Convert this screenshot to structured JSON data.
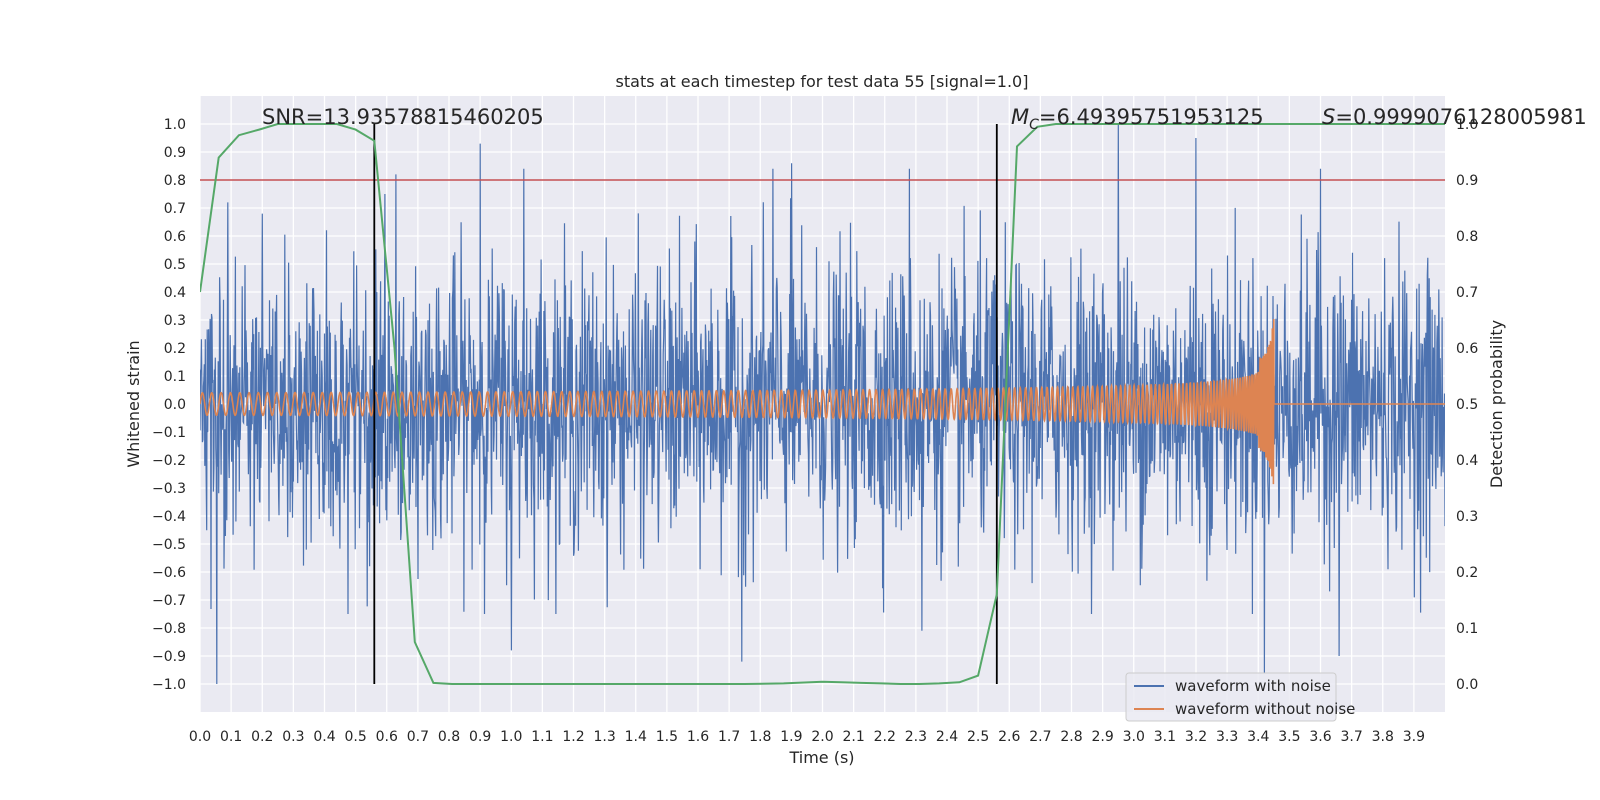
{
  "chart_data": {
    "type": "line",
    "title": "stats at each timestep for test data 55 [signal=1.0]",
    "xlabel": "Time (s)",
    "ylabel_left": "Whitened strain",
    "ylabel_right": "Detection probability",
    "xlim": [
      0.0,
      4.0
    ],
    "ylim_left": [
      -1.1,
      1.1
    ],
    "ylim_right": [
      -0.05,
      1.05
    ],
    "xticks": [
      "0.0",
      "0.1",
      "0.2",
      "0.3",
      "0.4",
      "0.5",
      "0.6",
      "0.7",
      "0.8",
      "0.9",
      "1.0",
      "1.1",
      "1.2",
      "1.3",
      "1.4",
      "1.5",
      "1.6",
      "1.7",
      "1.8",
      "1.9",
      "2.0",
      "2.1",
      "2.2",
      "2.3",
      "2.4",
      "2.5",
      "2.6",
      "2.7",
      "2.8",
      "2.9",
      "3.0",
      "3.1",
      "3.2",
      "3.3",
      "3.4",
      "3.5",
      "3.6",
      "3.7",
      "3.8",
      "3.9"
    ],
    "yticks_left": [
      "1.0",
      "0.9",
      "0.8",
      "0.7",
      "0.6",
      "0.5",
      "0.4",
      "0.3",
      "0.2",
      "0.1",
      "0.0",
      "−0.1",
      "−0.2",
      "−0.3",
      "−0.4",
      "−0.5",
      "−0.6",
      "−0.7",
      "−0.8",
      "−0.9",
      "−1.0"
    ],
    "yticks_right": [
      "1.0",
      "0.9",
      "0.8",
      "0.7",
      "0.6",
      "0.5",
      "0.4",
      "0.3",
      "0.2",
      "0.1",
      "0.0"
    ],
    "threshold": {
      "y_left": 0.8,
      "color": "#c44e52"
    },
    "vlines": [
      {
        "x": 0.56,
        "ymin": -1.0,
        "ymax": 1.0,
        "color": "#000000"
      },
      {
        "x": 2.56,
        "ymin": -1.0,
        "ymax": 1.0,
        "color": "#000000"
      }
    ],
    "series": [
      {
        "name": "waveform with noise",
        "color": "#4c72b0",
        "axis": "left",
        "generator": "noise",
        "amplitude_typical": 0.45,
        "min": -1.0,
        "max": 1.0,
        "peaks": [
          {
            "x": 0.054,
            "y": -1.0
          },
          {
            "x": 0.09,
            "y": 0.72
          },
          {
            "x": 0.2,
            "y": 0.68
          },
          {
            "x": 0.63,
            "y": 0.82
          },
          {
            "x": 0.9,
            "y": 0.93
          },
          {
            "x": 1.0,
            "y": -0.88
          },
          {
            "x": 1.04,
            "y": 0.84
          },
          {
            "x": 1.74,
            "y": -0.92
          },
          {
            "x": 1.84,
            "y": 0.84
          },
          {
            "x": 1.9,
            "y": 0.86
          },
          {
            "x": 2.28,
            "y": 0.84
          },
          {
            "x": 2.32,
            "y": -0.81
          },
          {
            "x": 2.95,
            "y": 1.0
          },
          {
            "x": 3.2,
            "y": 0.95
          },
          {
            "x": 3.42,
            "y": -0.96
          },
          {
            "x": 3.6,
            "y": 0.84
          },
          {
            "x": 3.66,
            "y": -0.9
          }
        ]
      },
      {
        "name": "waveform without noise",
        "color": "#dd8452",
        "axis": "left",
        "generator": "chirp",
        "merger_time": 3.45,
        "amplitude_start": 0.04,
        "peak_amplitude": 0.38
      },
      {
        "name": "detection probability",
        "color": "#55a868",
        "axis": "right",
        "x": [
          0.0,
          0.06,
          0.125,
          0.19,
          0.25,
          0.31,
          0.375,
          0.44,
          0.5,
          0.56,
          0.625,
          0.69,
          0.75,
          0.81,
          0.875,
          1.0,
          1.25,
          1.5,
          1.75,
          1.875,
          2.0,
          2.06,
          2.125,
          2.19,
          2.25,
          2.31,
          2.375,
          2.44,
          2.5,
          2.56,
          2.625,
          2.69,
          2.75,
          3.0,
          3.5,
          4.0
        ],
        "y": [
          0.7,
          0.94,
          0.98,
          0.99,
          1.0,
          1.0,
          1.0,
          1.0,
          0.99,
          0.97,
          0.6,
          0.075,
          0.002,
          0.0,
          0.0,
          0.0,
          0.0,
          0.0,
          0.0,
          0.001,
          0.004,
          0.003,
          0.002,
          0.001,
          0.0,
          0.0,
          0.001,
          0.003,
          0.015,
          0.16,
          0.96,
          0.995,
          1.0,
          1.0,
          1.0,
          1.0
        ]
      }
    ],
    "legend": {
      "position": "lower-right",
      "entries": [
        "waveform with noise",
        "waveform without noise"
      ]
    },
    "annotations": {
      "snr": "SNR=13.93578815460205",
      "mc_symbol": "M",
      "mc_sub": "C",
      "mc_value": "=6.49395751953125",
      "s_symbol": "S",
      "s_value": "=0.9999076128005981"
    }
  }
}
